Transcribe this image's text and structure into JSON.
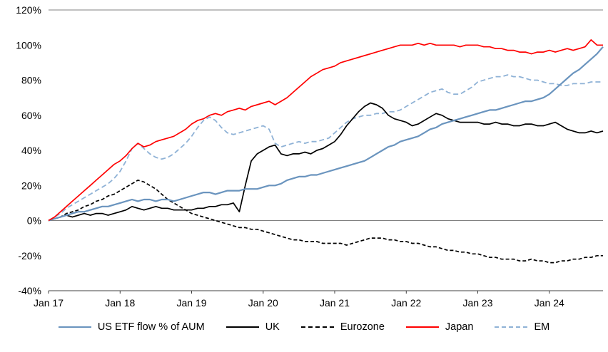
{
  "chart_data": {
    "type": "line",
    "title": "",
    "xlabel": "",
    "ylabel": "",
    "ylim": [
      -40,
      120
    ],
    "grid": "zero-line-only",
    "legend_position": "bottom",
    "y_ticks": [
      120,
      100,
      80,
      60,
      40,
      20,
      0,
      -20,
      -40
    ],
    "y_tick_labels": [
      "120%",
      "100%",
      "80%",
      "60%",
      "40%",
      "20%",
      "0%",
      "-20%",
      "-40%"
    ],
    "x_tick_labels": [
      "Jan 17",
      "Jan 18",
      "Jan 19",
      "Jan 20",
      "Jan 21",
      "Jan 22",
      "Jan 23",
      "Jan 24"
    ],
    "x_tick_month_indices": [
      0,
      12,
      24,
      36,
      48,
      60,
      72,
      84
    ],
    "x_unit": "monthly, Jan 2017 - Oct 2024, values are cumulative flow in % of AUM",
    "draw_order": [
      2,
      4,
      1,
      0,
      3
    ],
    "series": [
      {
        "id": "us",
        "name": "US ETF flow % of AUM",
        "color": "#6A94BE",
        "dash": null,
        "width": 2.2,
        "values": [
          0,
          1,
          2,
          3,
          4,
          5,
          5,
          6,
          7,
          8,
          8,
          9,
          10,
          11,
          12,
          11,
          12,
          12,
          11,
          12,
          12,
          11,
          12,
          13,
          14,
          15,
          16,
          16,
          15,
          16,
          17,
          17,
          17,
          18,
          18,
          18,
          19,
          20,
          20,
          21,
          23,
          24,
          25,
          25,
          26,
          26,
          27,
          28,
          29,
          30,
          31,
          32,
          33,
          34,
          36,
          38,
          40,
          42,
          43,
          45,
          46,
          47,
          48,
          50,
          52,
          53,
          55,
          56,
          57,
          58,
          59,
          60,
          61,
          62,
          63,
          63,
          64,
          65,
          66,
          67,
          68,
          68,
          69,
          70,
          72,
          75,
          78,
          81,
          84,
          86,
          89,
          92,
          95,
          99
        ]
      },
      {
        "id": "uk",
        "name": "UK",
        "color": "#000000",
        "dash": null,
        "width": 1.7,
        "values": [
          0,
          1,
          2,
          3,
          2,
          3,
          4,
          3,
          4,
          4,
          3,
          4,
          5,
          6,
          8,
          7,
          6,
          7,
          8,
          7,
          7,
          6,
          6,
          6,
          6,
          7,
          7,
          8,
          8,
          9,
          9,
          10,
          5,
          20,
          34,
          38,
          40,
          42,
          43,
          38,
          37,
          38,
          38,
          39,
          38,
          40,
          41,
          43,
          45,
          49,
          54,
          58,
          62,
          65,
          67,
          66,
          64,
          60,
          58,
          57,
          56,
          54,
          55,
          57,
          59,
          61,
          60,
          58,
          57,
          56,
          56,
          56,
          56,
          55,
          55,
          56,
          55,
          55,
          54,
          54,
          55,
          55,
          54,
          54,
          55,
          56,
          54,
          52,
          51,
          50,
          50,
          51,
          50,
          51
        ]
      },
      {
        "id": "eurozone",
        "name": "Eurozone",
        "color": "#000000",
        "dash": "5,3",
        "width": 1.7,
        "values": [
          0,
          1,
          2,
          4,
          5,
          6,
          8,
          9,
          11,
          12,
          14,
          15,
          17,
          19,
          21,
          23,
          22,
          20,
          18,
          15,
          12,
          10,
          8,
          6,
          4,
          3,
          2,
          1,
          0,
          -1,
          -2,
          -3,
          -4,
          -4,
          -5,
          -5,
          -6,
          -7,
          -8,
          -9,
          -10,
          -11,
          -11,
          -12,
          -12,
          -12,
          -13,
          -13,
          -13,
          -13,
          -14,
          -13,
          -12,
          -11,
          -10,
          -10,
          -10,
          -11,
          -11,
          -12,
          -12,
          -13,
          -13,
          -14,
          -15,
          -15,
          -16,
          -17,
          -17,
          -18,
          -18,
          -19,
          -19,
          -20,
          -21,
          -21,
          -22,
          -22,
          -22,
          -23,
          -23,
          -22,
          -23,
          -23,
          -24,
          -24,
          -23,
          -23,
          -22,
          -22,
          -21,
          -21,
          -20,
          -20
        ]
      },
      {
        "id": "japan",
        "name": "Japan",
        "color": "#FF0000",
        "dash": null,
        "width": 1.7,
        "values": [
          0,
          2,
          5,
          8,
          11,
          14,
          17,
          20,
          23,
          26,
          29,
          32,
          34,
          37,
          41,
          44,
          42,
          43,
          45,
          46,
          47,
          48,
          50,
          52,
          55,
          57,
          58,
          60,
          61,
          60,
          62,
          63,
          64,
          63,
          65,
          66,
          67,
          68,
          66,
          68,
          70,
          73,
          76,
          79,
          82,
          84,
          86,
          87,
          88,
          90,
          91,
          92,
          93,
          94,
          95,
          96,
          97,
          98,
          99,
          100,
          100,
          100,
          101,
          100,
          101,
          100,
          100,
          100,
          100,
          99,
          100,
          100,
          100,
          99,
          99,
          98,
          98,
          97,
          97,
          96,
          96,
          95,
          96,
          96,
          97,
          96,
          97,
          98,
          97,
          98,
          99,
          103,
          100,
          100
        ]
      },
      {
        "id": "em",
        "name": "EM",
        "color": "#8FB2D6",
        "dash": "7,4",
        "width": 1.8,
        "values": [
          0,
          2,
          4,
          7,
          9,
          11,
          13,
          15,
          17,
          19,
          21,
          24,
          28,
          34,
          41,
          44,
          41,
          38,
          36,
          35,
          36,
          38,
          41,
          44,
          48,
          53,
          57,
          59,
          57,
          53,
          50,
          49,
          50,
          51,
          52,
          53,
          54,
          52,
          44,
          42,
          43,
          44,
          45,
          44,
          45,
          45,
          46,
          47,
          50,
          53,
          56,
          58,
          59,
          60,
          60,
          61,
          61,
          62,
          62,
          63,
          65,
          67,
          69,
          71,
          73,
          74,
          75,
          73,
          72,
          72,
          74,
          76,
          79,
          80,
          81,
          82,
          82,
          83,
          82,
          82,
          81,
          80,
          80,
          79,
          78,
          78,
          77,
          77,
          78,
          78,
          78,
          79,
          79,
          79
        ]
      }
    ],
    "axis_colors": {
      "zero_line": "#808080",
      "top_border": "#808080",
      "x_axis_line": "#404040",
      "tick_text": "#000000"
    }
  }
}
